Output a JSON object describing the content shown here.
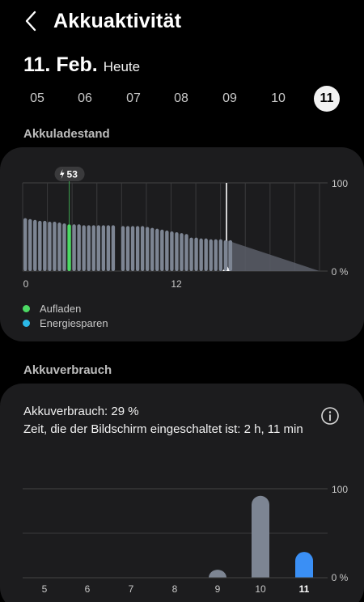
{
  "header": {
    "title": "Akkuaktivität",
    "back_icon": "chevron-left-icon"
  },
  "date": {
    "main": "11. Feb.",
    "sub": "Heute"
  },
  "days": [
    "05",
    "06",
    "07",
    "08",
    "09",
    "10",
    "11"
  ],
  "selected_day": "11",
  "section1": {
    "title": "Akkuladestand"
  },
  "section2": {
    "title": "Akkuverbrauch"
  },
  "level_chart": {
    "y_max_label": "100",
    "y_min_label": "0 %",
    "x_labels": [
      "0",
      "12"
    ],
    "charge_badge": "53",
    "charge_icon": "lightning-bolt-icon"
  },
  "legend": [
    {
      "label": "Aufladen",
      "color": "#4cd964"
    },
    {
      "label": "Energiesparen",
      "color": "#2bb8e8"
    }
  ],
  "usage": {
    "line1": "Akkuverbrauch: 29 %",
    "line2": "Zeit, die der Bildschirm eingeschaltet ist: 2 h, 11 min",
    "info_icon": "info-icon"
  },
  "colors": {
    "bar": "#7d8593",
    "charging": "#4cd964",
    "today": "#3a8ff5",
    "forecast": "#5a5e68"
  },
  "chart_data": [
    {
      "type": "bar",
      "title": "Akkuladestand",
      "xlabel": "",
      "ylabel": "",
      "ylim": [
        0,
        100
      ],
      "x_tick_labels": [
        "0",
        "12"
      ],
      "charging_marker": 53,
      "series": [
        {
          "values": [
            60,
            59,
            58,
            57,
            57,
            56,
            56,
            55,
            54,
            53,
            53,
            53,
            52,
            52,
            52,
            52,
            52,
            52,
            52,
            0,
            51,
            51,
            51,
            51,
            51,
            50,
            49,
            48,
            47,
            46,
            45,
            44,
            43,
            42,
            38,
            38,
            37,
            37,
            36,
            36,
            36,
            35,
            35
          ]
        }
      ],
      "charging_bar_index": 9,
      "forecast": {
        "start": 35,
        "end": 0
      }
    },
    {
      "type": "bar",
      "title": "Akkuverbrauch",
      "xlabel": "",
      "ylabel": "",
      "ylim": [
        0,
        100
      ],
      "categories": [
        "5",
        "6",
        "7",
        "8",
        "9",
        "10",
        "11"
      ],
      "values": [
        0,
        0,
        0,
        0,
        9,
        92,
        29
      ],
      "y_labels": [
        "100",
        "0 %"
      ]
    }
  ]
}
